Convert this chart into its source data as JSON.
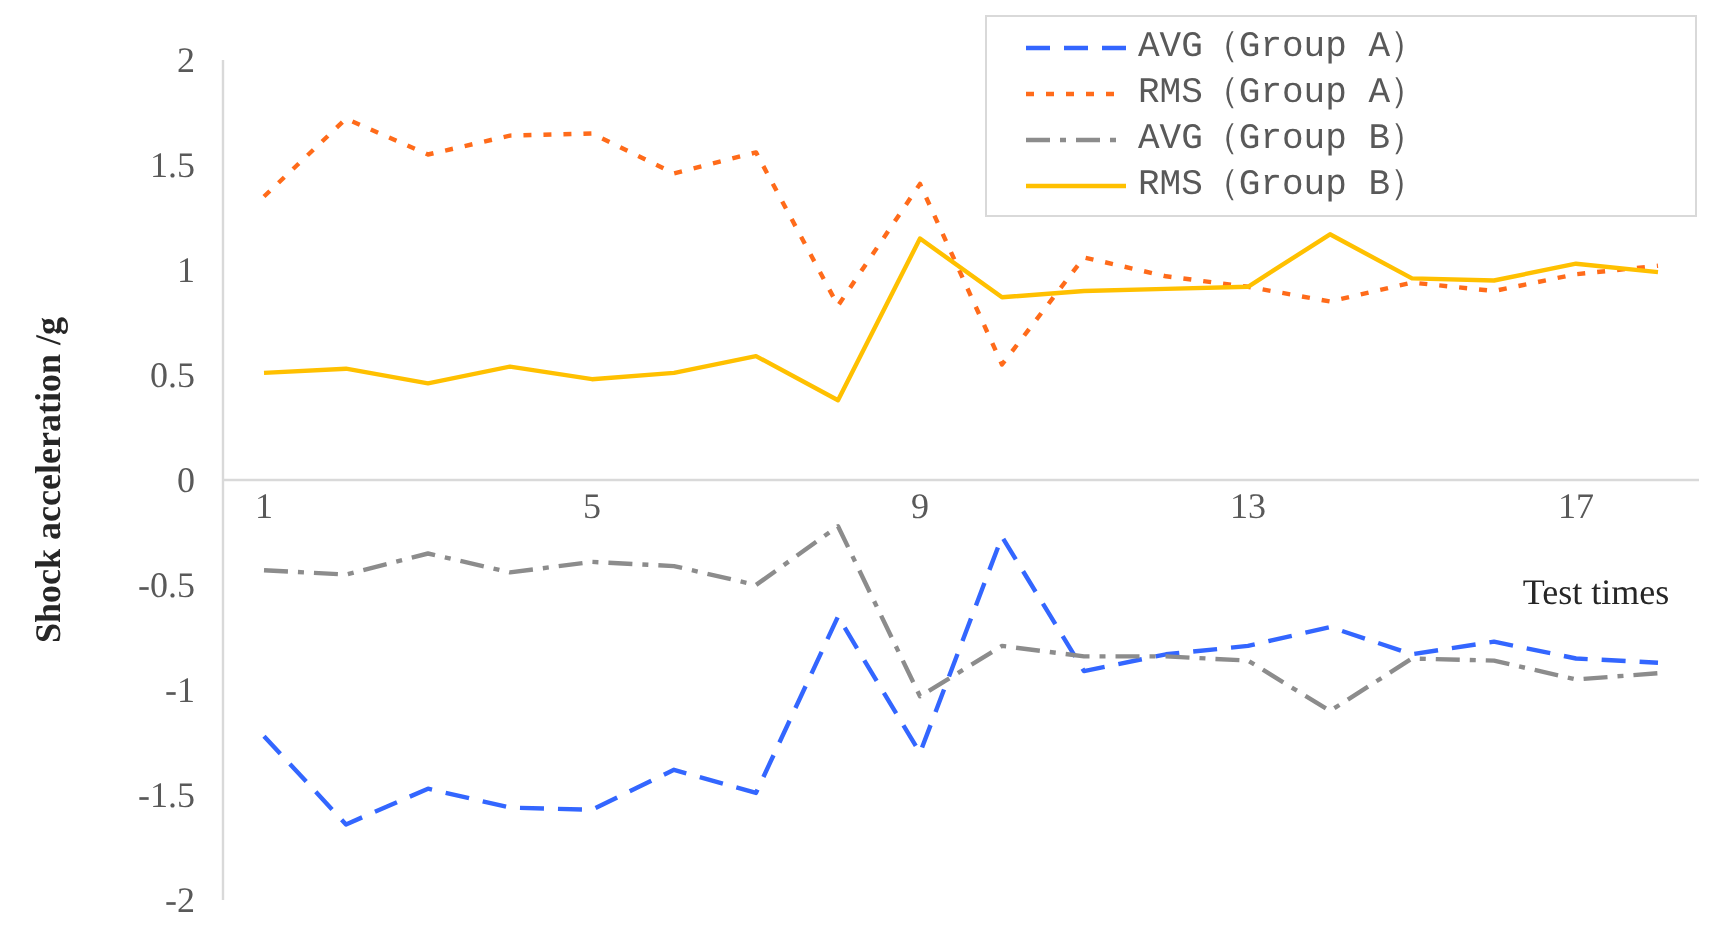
{
  "chart_data": {
    "type": "line",
    "xlabel": "Test times",
    "ylabel": "Shock acceleration /g",
    "x": [
      1,
      2,
      3,
      4,
      5,
      6,
      7,
      8,
      9,
      10,
      11,
      12,
      13,
      14,
      15,
      16,
      17,
      18
    ],
    "xlim": [
      0.5,
      18.5
    ],
    "xticks": [
      1,
      5,
      9,
      13,
      17
    ],
    "ylim": [
      -2,
      2
    ],
    "yticks": [
      -2,
      -1.5,
      -1,
      -0.5,
      0,
      0.5,
      1,
      1.5,
      2
    ],
    "legend": "top right",
    "grid": false,
    "marker": "none",
    "series": [
      {
        "name": "AVG（Group A）",
        "color": "#3366ff",
        "line_style": "dashed",
        "values": [
          -1.22,
          -1.64,
          -1.47,
          -1.56,
          -1.57,
          -1.38,
          -1.49,
          -0.65,
          -1.3,
          -0.27,
          -0.91,
          -0.83,
          -0.79,
          -0.7,
          -0.83,
          -0.77,
          -0.85,
          -0.87
        ]
      },
      {
        "name": "RMS（Group A）",
        "color": "#ff6b1a",
        "line_style": "dotted",
        "values": [
          1.35,
          1.72,
          1.55,
          1.64,
          1.65,
          1.46,
          1.56,
          0.83,
          1.41,
          0.55,
          1.06,
          0.97,
          0.92,
          0.85,
          0.94,
          0.9,
          0.98,
          1.02
        ]
      },
      {
        "name": "AVG（Group B）",
        "color": "#8c8c8c",
        "line_style": "dashdot",
        "values": [
          -0.43,
          -0.45,
          -0.35,
          -0.44,
          -0.39,
          -0.41,
          -0.5,
          -0.22,
          -1.03,
          -0.79,
          -0.84,
          -0.84,
          -0.86,
          -1.1,
          -0.85,
          -0.86,
          -0.95,
          -0.92
        ]
      },
      {
        "name": "RMS（Group B）",
        "color": "#ffc000",
        "line_style": "solid",
        "values": [
          0.51,
          0.53,
          0.46,
          0.54,
          0.48,
          0.51,
          0.59,
          0.38,
          1.15,
          0.87,
          0.9,
          0.91,
          0.92,
          1.17,
          0.96,
          0.95,
          1.03,
          0.99
        ]
      }
    ]
  }
}
